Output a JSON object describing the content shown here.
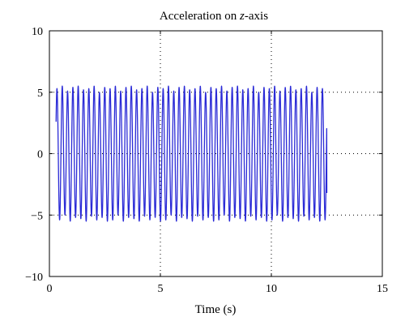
{
  "chart_data": {
    "type": "line",
    "title": "Acceleration on z-axis",
    "title_parts": {
      "prefix": "Acceleration on ",
      "variable": "z",
      "suffix": "-axis"
    },
    "xlabel": "Time (s)",
    "ylabel": "",
    "xlim": [
      0,
      15
    ],
    "ylim": [
      -10,
      10
    ],
    "x_ticks": [
      0,
      5,
      10,
      15
    ],
    "x_tick_labels": [
      "0",
      "5",
      "10",
      "15"
    ],
    "y_ticks": [
      -10,
      -5,
      0,
      5,
      10
    ],
    "y_tick_labels": [
      "−10",
      "−5",
      "0",
      "5",
      "10"
    ],
    "grid": true,
    "legend": false,
    "series_color": "#2a2ad6",
    "series": [
      {
        "signal": "sinusoidal oscillation",
        "x_start": 0.3,
        "x_end": 12.5,
        "approx_cycles": 51,
        "peak_values": [
          5.3,
          5.5,
          5.1,
          5.4,
          5.5,
          5.2,
          5.3,
          5.5,
          5.0,
          5.4
        ],
        "trough_values": [
          -5.4,
          -5.0,
          -5.5,
          -5.2,
          -5.3,
          -5.5,
          -5.1,
          -5.4,
          -5.2,
          -5.5
        ],
        "start_value": 2.6,
        "end_value": -3.2
      }
    ]
  }
}
